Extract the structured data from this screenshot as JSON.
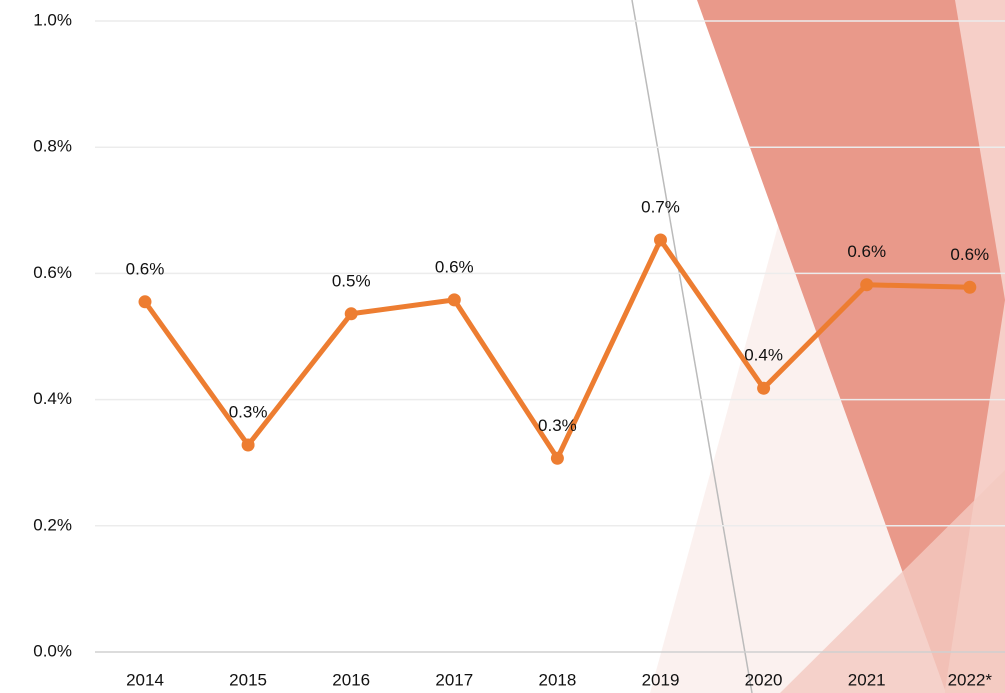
{
  "chart_data": {
    "type": "line",
    "categories": [
      "2014",
      "2015",
      "2016",
      "2017",
      "2018",
      "2019",
      "2020",
      "2021",
      "2022*"
    ],
    "series": [
      {
        "color": "#ed7d31",
        "values": [
          0.555,
          0.328,
          0.536,
          0.558,
          0.307,
          0.653,
          0.418,
          0.582,
          0.578
        ],
        "value_labels": [
          "0.6%",
          "0.3%",
          "0.5%",
          "0.6%",
          "0.3%",
          "0.7%",
          "0.4%",
          "0.6%",
          "0.6%"
        ]
      }
    ],
    "ylim": [
      0,
      1.0
    ],
    "yticks": [
      {
        "value": 0,
        "label": "0.0%"
      },
      {
        "value": 0.2,
        "label": "0.2%"
      },
      {
        "value": 0.4,
        "label": "0.4%"
      },
      {
        "value": 0.6,
        "label": "0.6%"
      },
      {
        "value": 0.8,
        "label": "0.8%"
      },
      {
        "value": 1.0,
        "label": "1.0%"
      }
    ],
    "grid": true
  }
}
